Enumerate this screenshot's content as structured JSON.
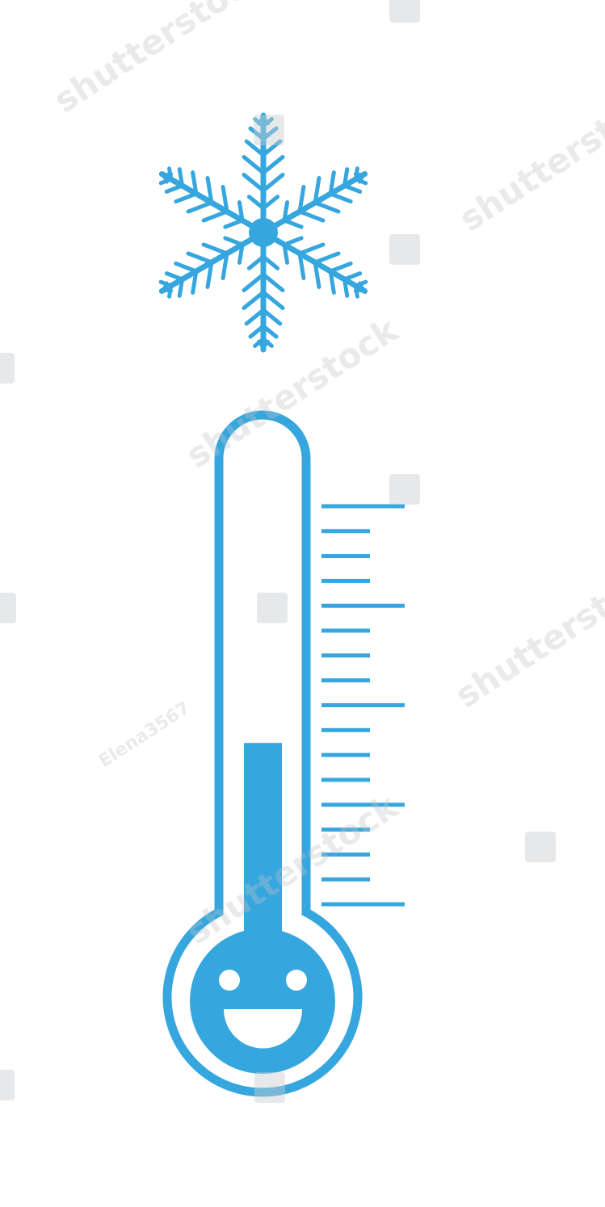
{
  "colors": {
    "accent": "#36a6de",
    "background": "#ffffff",
    "watermark": "#c8ccd0"
  },
  "icons": {
    "top": "snowflake-icon",
    "main": "thermometer-icon",
    "face": "smiley-face-icon"
  },
  "thermometer": {
    "level_fraction": 0.42,
    "scale_major_ticks": 5,
    "scale_minor_per_major": 4
  },
  "watermark": {
    "brand": "shutterstock",
    "author": "Elena3567"
  }
}
